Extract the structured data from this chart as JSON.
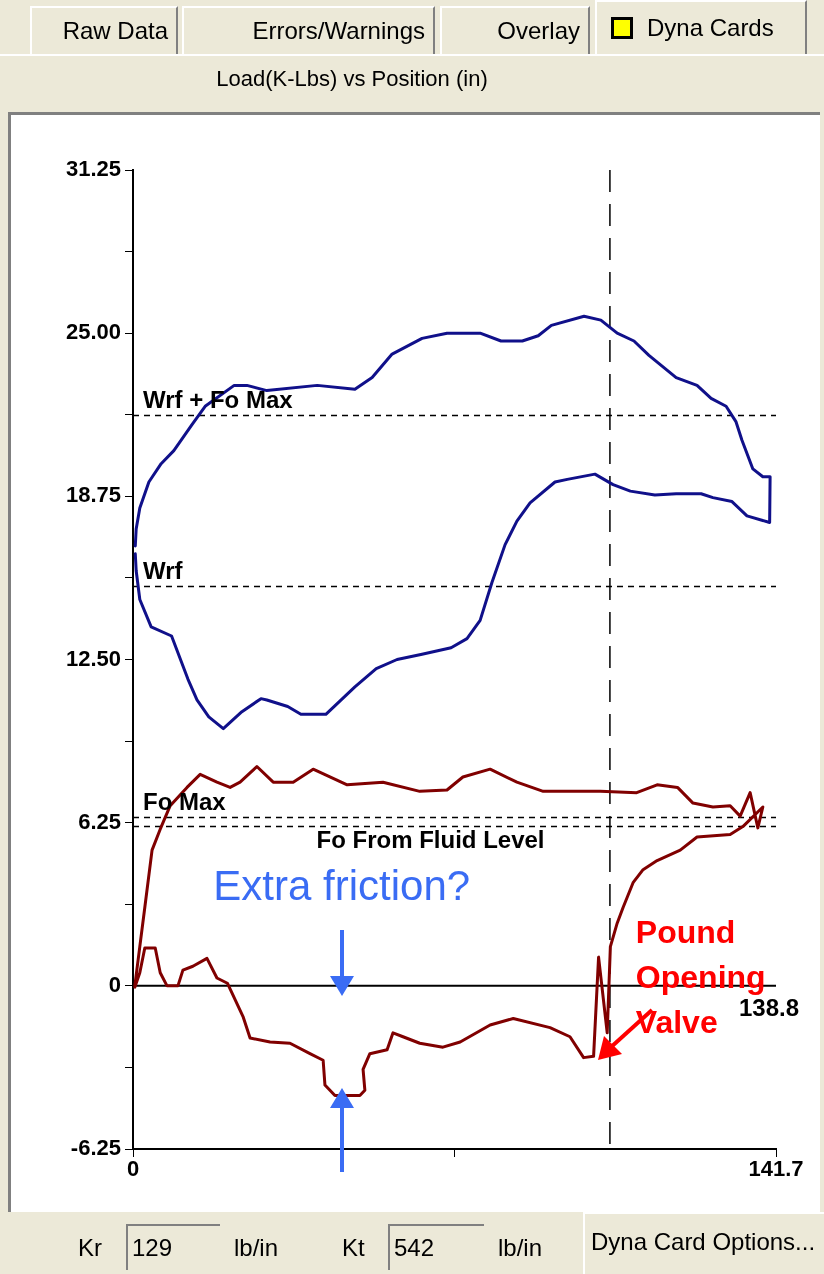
{
  "chart_data": {
    "type": "line",
    "title": "Load(K-Lbs) vs Position (in)",
    "xlim": [
      0,
      141.7
    ],
    "xticks": [
      0,
      {
        "value": 70.85,
        "label": null
      },
      141.7
    ],
    "ylim": [
      -6.25,
      31.25
    ],
    "yticks": [
      -6.25,
      {
        "value": -3.125,
        "label": null
      },
      0,
      {
        "value": 3.125,
        "label": null
      },
      6.25,
      {
        "value": 9.375,
        "label": null
      },
      {
        "value": 12.5,
        "label": "12.50"
      },
      {
        "value": 15.625,
        "label": null
      },
      18.75,
      {
        "value": 21.875,
        "label": null
      },
      {
        "value": 25,
        "label": "25.00"
      },
      {
        "value": 28.125,
        "label": null
      },
      31.25
    ],
    "marker": "none",
    "series": [
      {
        "color": "#10108a",
        "x": [
          0.5,
          0.7,
          1.5,
          3.5,
          6.2,
          9.0,
          13.0,
          15.9,
          22.3,
          25.1,
          29.5,
          40.6,
          48.9,
          52.7,
          57.1,
          63.7,
          69.2,
          76.5,
          81.1,
          85.8,
          89.3,
          92.2,
          99.4,
          103.1,
          106.7,
          110.4,
          113.7,
          119.7,
          124.3,
          127.4,
          130.7,
          132.9,
          134.2,
          136.6,
          138.8,
          140.4,
          140.3,
          135.3,
          132.0,
          127.8,
          125.2,
          119.7,
          115.0,
          109.6,
          105.8,
          101.8,
          95.7,
          93.0,
          87.5,
          84.6,
          82.0,
          79.1,
          76.5,
          73.6,
          70.1,
          63.7,
          58.2,
          53.6,
          48.9,
          42.5,
          37.0,
          34.1,
          29.5,
          28.2,
          24.0,
          19.9,
          16.7,
          14.1,
          12.1,
          8.5,
          4.0,
          1.5,
          0.7,
          0.5
        ],
        "values": [
          16.85,
          17.5,
          18.3,
          19.3,
          20.0,
          20.5,
          21.5,
          22.2,
          23.0,
          23.0,
          22.8,
          23.0,
          22.85,
          23.3,
          24.2,
          24.8,
          25.0,
          25.0,
          24.7,
          24.7,
          24.9,
          25.3,
          25.65,
          25.5,
          25.0,
          24.7,
          24.15,
          23.3,
          23.0,
          22.5,
          22.2,
          21.6,
          20.9,
          19.8,
          19.5,
          19.5,
          17.75,
          18.0,
          18.55,
          18.7,
          18.85,
          18.85,
          18.8,
          18.95,
          19.2,
          19.6,
          19.4,
          19.3,
          18.5,
          17.8,
          16.9,
          15.45,
          14.0,
          13.3,
          12.95,
          12.7,
          12.5,
          12.15,
          11.45,
          10.4,
          10.4,
          10.7,
          10.95,
          11.0,
          10.5,
          9.85,
          10.3,
          10.95,
          11.75,
          13.4,
          13.75,
          14.8,
          15.9,
          16.55
        ]
      },
      {
        "color": "#800000",
        "x": [
          0.4,
          1.5,
          2.6,
          4.2,
          6.0,
          8.2,
          11.9,
          14.8,
          18.5,
          21.4,
          23.6,
          27.3,
          30.9,
          35.3,
          39.7,
          47.2,
          55.1,
          63.2,
          69.2,
          72.7,
          78.7,
          84.6,
          90.4,
          103,
          111,
          115.5,
          120,
          123.4,
          127.8,
          131.6,
          133.8,
          136.0,
          137.7,
          138.8,
          134.4,
          131.6,
          124.3,
          120.6,
          115.5,
          112.4,
          110.2,
          108.0,
          106.7,
          105.2,
          104.5,
          102.6,
          101.5,
          99.3,
          96.3,
          91.9,
          83.8,
          78.7,
          72.1,
          68.3,
          63.2,
          59.5,
          57.3,
          56,
          52.2,
          50.7,
          51.1,
          50,
          44.5,
          42.3,
          41.9,
          39,
          34.6,
          30.2,
          25.8,
          24.3,
          20.8,
          18.5,
          16.3,
          13.2,
          11.0,
          9.9,
          7.5,
          6.0,
          4.9,
          2.6,
          1.5,
          0.4
        ],
        "values": [
          0.0,
          1.5,
          3.0,
          5.2,
          6.0,
          6.9,
          7.6,
          8.1,
          7.8,
          7.6,
          7.8,
          8.4,
          7.8,
          7.8,
          8.3,
          7.7,
          7.8,
          7.45,
          7.5,
          8.0,
          8.3,
          7.8,
          7.45,
          7.45,
          7.4,
          7.7,
          7.6,
          7.0,
          6.85,
          6.9,
          6.5,
          7.4,
          6.05,
          6.85,
          6.1,
          5.8,
          5.7,
          5.2,
          4.8,
          4.45,
          3.95,
          3.0,
          2.4,
          1.5,
          -1.8,
          1.1,
          -2.7,
          -2.75,
          -1.95,
          -1.6,
          -1.25,
          -1.5,
          -2.15,
          -2.35,
          -2.2,
          -1.95,
          -1.8,
          -2.45,
          -2.6,
          -3.2,
          -4.0,
          -4.2,
          -4.2,
          -3.8,
          -2.85,
          -2.6,
          -2.2,
          -2.15,
          -2.0,
          -1.2,
          0.1,
          0.3,
          1.05,
          0.75,
          0.6,
          0.0,
          0.0,
          0.5,
          1.45,
          1.45,
          0.5,
          -0.05
        ]
      }
    ],
    "ref_lines": [
      {
        "axis": "y",
        "value": 21.85,
        "label": "Wrf + Fo Max",
        "line_style": "dashed"
      },
      {
        "axis": "y",
        "value": 15.3,
        "label": "Wrf",
        "line_style": "dashed"
      },
      {
        "axis": "y",
        "value": 6.45,
        "label": "Fo Max",
        "line_style": "dashed"
      },
      {
        "axis": "y",
        "value": 6.1,
        "label": "Fo From Fluid Level",
        "line_style": "dashed"
      },
      {
        "axis": "y",
        "value": 0,
        "line_style": "solid"
      },
      {
        "axis": "x",
        "value": 105.1,
        "line_style": "dashed"
      }
    ],
    "annotations": [
      {
        "text": "Extra friction?",
        "x": 46,
        "y": 0
      },
      {
        "text": "Pound Opening Valve",
        "x": 102,
        "y": -2.7
      },
      "138.8",
      "Raw Data",
      "Errors/Warnings",
      "Overlay",
      "Dyna Cards",
      "Kr",
      "129",
      "lb/in",
      "Kt",
      "542",
      "lb/in",
      "Dyna Card Options..."
    ]
  }
}
